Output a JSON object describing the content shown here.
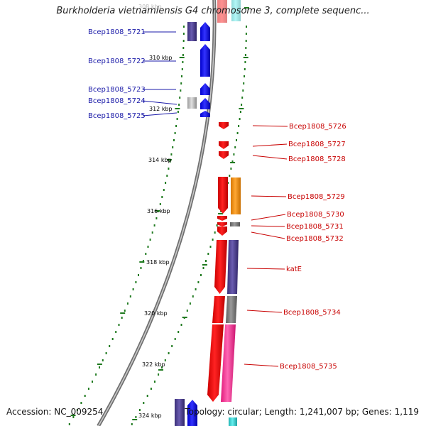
{
  "title": "Burkholderia vietnamiensis G4 chromosome 3, complete sequenc...",
  "footer": {
    "accession": "Accession: NC_009254",
    "summary": "Topology: circular; Length: 1,241,007 bp; Genes: 1,119"
  },
  "scale": {
    "labels": [
      {
        "text": "308 kbp",
        "faded": true
      },
      {
        "text": "310 kbp",
        "faded": false
      },
      {
        "text": "312 kbp",
        "faded": false
      },
      {
        "text": "314 kbp",
        "faded": false
      },
      {
        "text": "316 kbp",
        "faded": false
      },
      {
        "text": "318 kbp",
        "faded": false
      },
      {
        "text": "320 kbp",
        "faded": false
      },
      {
        "text": "322 kbp",
        "faded": false
      },
      {
        "text": "324 kbp",
        "faded": false
      }
    ]
  },
  "genes": {
    "forward_strand": [
      "Bcep1808_5721",
      "Bcep1808_5722",
      "Bcep1808_5723",
      "Bcep1808_5724",
      "Bcep1808_5725"
    ],
    "reverse_strand": [
      "Bcep1808_5726",
      "Bcep1808_5727",
      "Bcep1808_5728",
      "Bcep1808_5729",
      "Bcep1808_5730",
      "Bcep1808_5731",
      "Bcep1808_5732",
      "katE",
      "Bcep1808_5734",
      "Bcep1808_5735"
    ]
  },
  "colors": {
    "forward_cds": "#0000ff",
    "reverse_cds": "#ff0000",
    "backbone": "#777777",
    "tick_green": "#1f7a1f",
    "cog_purple": "#4b3f8f",
    "cog_gray": "#7a7a7a",
    "cog_orange": "#f08c00",
    "cog_pink": "#ff3399",
    "cog_cyan": "#33cccc",
    "label_left": "#1a1aa8",
    "label_right": "#c80000"
  }
}
